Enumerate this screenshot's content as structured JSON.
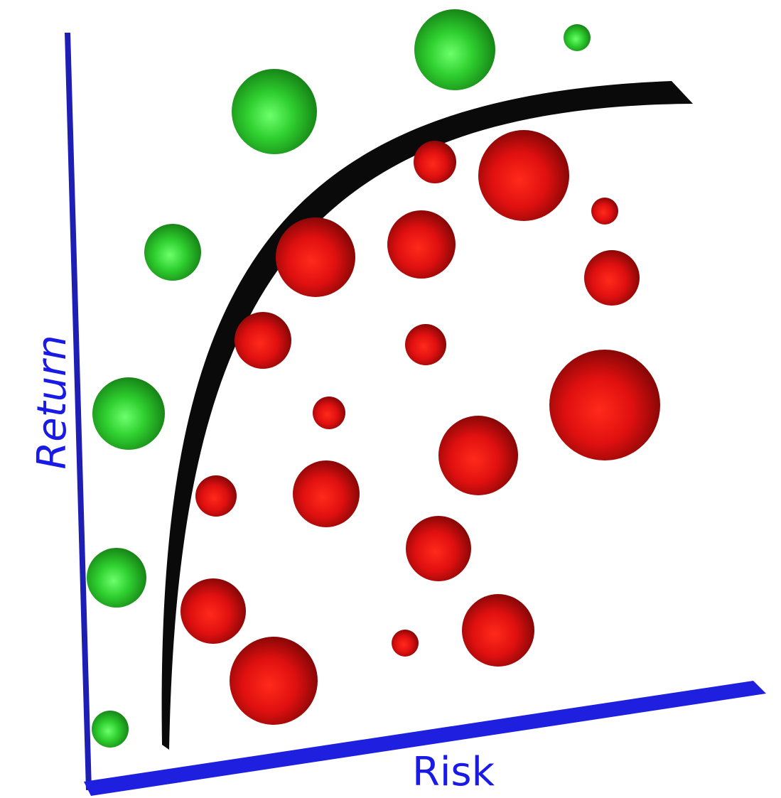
{
  "axes": {
    "y_label": "Return",
    "x_label": "Risk"
  }
}
